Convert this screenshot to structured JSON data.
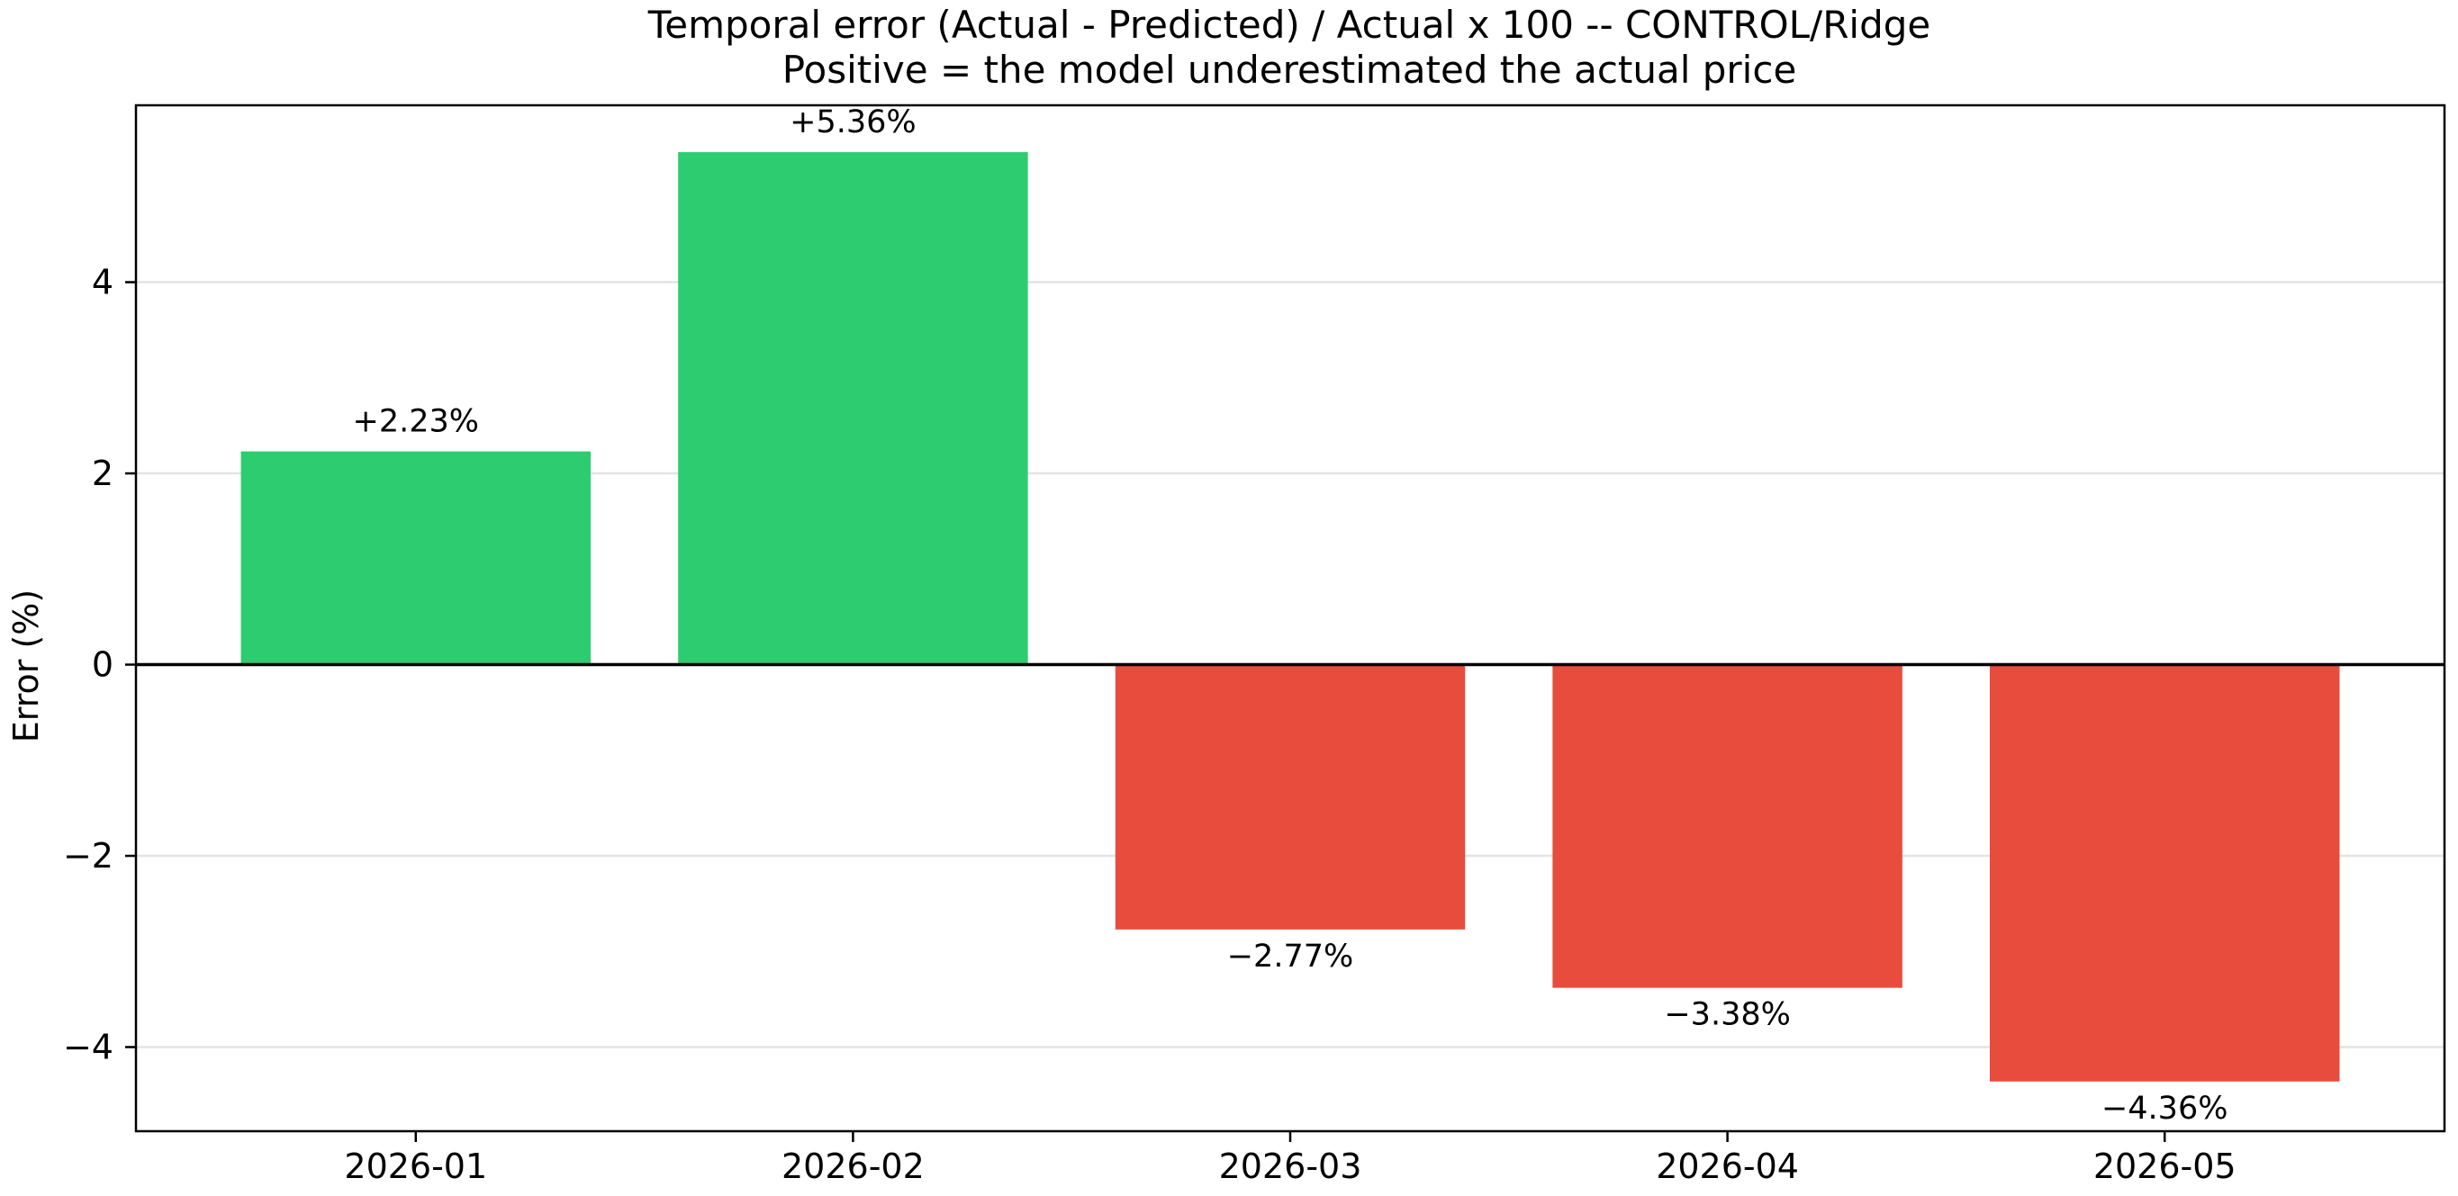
{
  "chart_data": {
    "type": "bar",
    "title": [
      "Temporal error (Actual - Predicted) / Actual x 100 -- CONTROL/Ridge",
      "Positive = the model underestimated the actual price"
    ],
    "xlabel": "",
    "ylabel": "Error (%)",
    "categories": [
      "2026-01",
      "2026-02",
      "2026-03",
      "2026-04",
      "2026-05"
    ],
    "values": [
      2.23,
      5.36,
      -2.77,
      -3.38,
      -4.36
    ],
    "data_labels": [
      "+2.23%",
      "+5.36%",
      "−2.77%",
      "−3.38%",
      "−4.36%"
    ],
    "ylim": [
      -4.88,
      5.85
    ],
    "yticks": [
      -4,
      -2,
      0,
      2,
      4
    ],
    "ytick_labels": [
      "−4",
      "−2",
      "0",
      "2",
      "4"
    ],
    "grid": true,
    "zero_line": true,
    "colors": {
      "positive": "#2ecc71",
      "negative": "#e74c3c",
      "grid": "#e3e3e3",
      "axis": "#000000"
    }
  }
}
